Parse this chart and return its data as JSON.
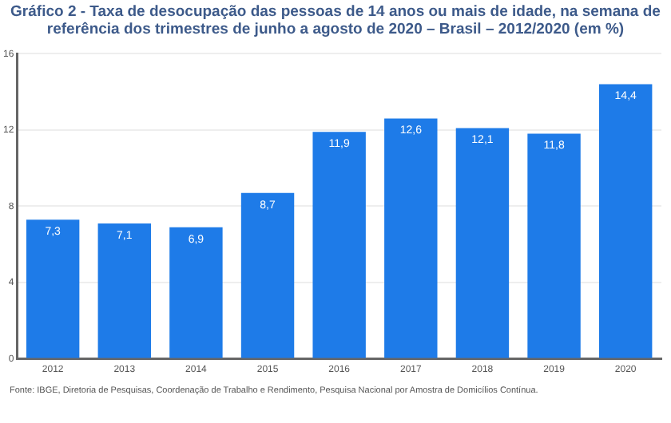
{
  "chart_data": {
    "type": "bar",
    "title": "Gráfico 2 - Taxa de desocupação das pessoas de 14 anos ou mais de idade, na semana de referência dos trimestres de junho a agosto de 2020 – Brasil – 2012/2020 (em %)",
    "categories": [
      "2012",
      "2013",
      "2014",
      "2015",
      "2016",
      "2017",
      "2018",
      "2019",
      "2020"
    ],
    "values": [
      7.3,
      7.1,
      6.9,
      8.7,
      11.9,
      12.6,
      12.1,
      11.8,
      14.4
    ],
    "color": "#1e7be8",
    "value_labels": [
      "7,3",
      "7,1",
      "6,9",
      "8,7",
      "11,9",
      "12,6",
      "12,1",
      "11,8",
      "14,4"
    ],
    "ylim": [
      0,
      16
    ],
    "yticks": [
      0,
      4,
      8,
      12,
      16
    ],
    "grid": "y",
    "annotations": [
      "Fonte: IBGE, Diretoria de Pesquisas, Coordenação de Trabalho e Rendimento, Pesquisa Nacional por Amostra de Domicílios Contínua."
    ]
  }
}
